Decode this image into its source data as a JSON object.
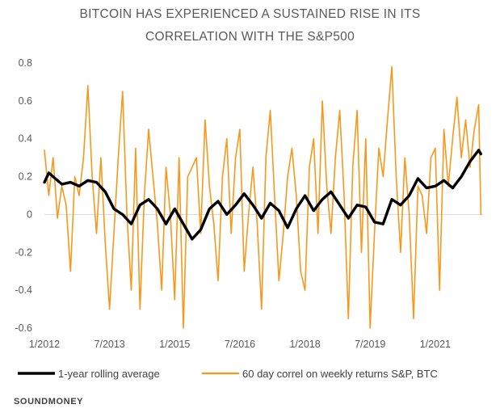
{
  "chart_data": {
    "type": "line",
    "title": [
      "BITCOIN HAS EXPERIENCED  A SUSTAINED RISE IN ITS",
      "CORRELATION WITH THE S&P500"
    ],
    "xlabel": "",
    "ylabel": "",
    "ylim": [
      -0.6,
      0.8
    ],
    "yticks": [
      -0.6,
      -0.4,
      -0.2,
      0,
      0.2,
      0.4,
      0.6,
      0.8
    ],
    "ytick_labels": [
      "-0.6",
      "-0.4",
      "-0.2",
      "0",
      "0.2",
      "0.4",
      "0.6",
      "0.8"
    ],
    "xlim": [
      2012.0,
      2022.1
    ],
    "xticks": [
      2012.0,
      2013.5,
      2015.0,
      2016.5,
      2018.0,
      2019.5,
      2021.0
    ],
    "xtick_labels": [
      "1/2012",
      "7/2013",
      "1/2015",
      "7/2016",
      "1/2018",
      "7/2019",
      "1/2021"
    ],
    "grid": false,
    "legend_position": "bottom",
    "series": [
      {
        "name": "60 day correl on weekly returns S&P, BTC",
        "color": "#F7981D",
        "x": [
          2012.0,
          2012.1,
          2012.2,
          2012.3,
          2012.4,
          2012.5,
          2012.6,
          2012.7,
          2012.8,
          2012.9,
          2013.0,
          2013.1,
          2013.2,
          2013.3,
          2013.4,
          2013.5,
          2013.6,
          2013.7,
          2013.8,
          2013.9,
          2014.0,
          2014.1,
          2014.2,
          2014.3,
          2014.4,
          2014.5,
          2014.6,
          2014.7,
          2014.8,
          2014.9,
          2015.0,
          2015.1,
          2015.2,
          2015.3,
          2015.4,
          2015.5,
          2015.6,
          2015.7,
          2015.8,
          2015.9,
          2016.0,
          2016.1,
          2016.2,
          2016.3,
          2016.4,
          2016.5,
          2016.6,
          2016.7,
          2016.8,
          2016.9,
          2017.0,
          2017.1,
          2017.2,
          2017.3,
          2017.4,
          2017.5,
          2017.6,
          2017.7,
          2017.8,
          2017.9,
          2018.0,
          2018.1,
          2018.2,
          2018.3,
          2018.4,
          2018.5,
          2018.6,
          2018.7,
          2018.8,
          2018.9,
          2019.0,
          2019.1,
          2019.2,
          2019.3,
          2019.4,
          2019.5,
          2019.6,
          2019.7,
          2019.8,
          2019.9,
          2020.0,
          2020.1,
          2020.2,
          2020.3,
          2020.4,
          2020.5,
          2020.6,
          2020.7,
          2020.8,
          2020.9,
          2021.0,
          2021.1,
          2021.2,
          2021.3,
          2021.4,
          2021.5,
          2021.6,
          2021.7,
          2021.8,
          2021.9,
          2022.0,
          2022.05
        ],
        "values": [
          0.34,
          0.1,
          0.3,
          -0.02,
          0.15,
          0.05,
          -0.3,
          0.2,
          0.1,
          0.3,
          0.68,
          0.2,
          -0.1,
          0.3,
          -0.15,
          -0.5,
          -0.1,
          0.3,
          0.65,
          0.0,
          -0.4,
          0.35,
          -0.5,
          0.1,
          0.45,
          0.2,
          -0.05,
          -0.4,
          0.25,
          0.0,
          -0.45,
          0.3,
          -0.6,
          0.2,
          0.25,
          0.3,
          -0.1,
          0.5,
          0.15,
          -0.05,
          -0.35,
          0.2,
          0.4,
          -0.1,
          0.3,
          0.45,
          -0.3,
          0.0,
          0.25,
          -0.05,
          -0.5,
          0.3,
          0.55,
          0.1,
          -0.35,
          -0.1,
          0.2,
          0.35,
          0.1,
          -0.3,
          -0.4,
          0.25,
          0.4,
          -0.1,
          0.6,
          0.15,
          -0.1,
          0.3,
          0.55,
          0.1,
          -0.55,
          0.25,
          0.55,
          -0.2,
          0.4,
          -0.6,
          -0.1,
          0.35,
          0.2,
          0.5,
          0.78,
          0.2,
          -0.2,
          0.3,
          0.0,
          -0.55,
          0.15,
          0.1,
          -0.1,
          0.3,
          0.35,
          -0.4,
          0.45,
          0.15,
          0.4,
          0.62,
          0.3,
          0.5,
          0.25,
          0.45,
          0.58,
          0.0
        ]
      },
      {
        "name": "1-year rolling average",
        "color": "#000000",
        "x": [
          2012.0,
          2012.1,
          2012.2,
          2012.4,
          2012.6,
          2012.8,
          2013.0,
          2013.2,
          2013.4,
          2013.6,
          2013.8,
          2014.0,
          2014.2,
          2014.4,
          2014.6,
          2014.8,
          2015.0,
          2015.2,
          2015.4,
          2015.6,
          2015.8,
          2016.0,
          2016.2,
          2016.4,
          2016.6,
          2016.8,
          2017.0,
          2017.2,
          2017.4,
          2017.6,
          2017.8,
          2018.0,
          2018.2,
          2018.4,
          2018.6,
          2018.8,
          2019.0,
          2019.2,
          2019.4,
          2019.6,
          2019.8,
          2020.0,
          2020.2,
          2020.4,
          2020.6,
          2020.8,
          2021.0,
          2021.2,
          2021.4,
          2021.6,
          2021.8,
          2022.0,
          2022.05
        ],
        "values": [
          0.17,
          0.22,
          0.2,
          0.16,
          0.17,
          0.15,
          0.18,
          0.17,
          0.12,
          0.03,
          0.0,
          -0.05,
          0.05,
          0.08,
          0.03,
          -0.05,
          0.03,
          -0.05,
          -0.13,
          -0.08,
          0.03,
          0.07,
          0.0,
          0.05,
          0.11,
          0.05,
          -0.02,
          0.06,
          0.02,
          -0.07,
          0.03,
          0.1,
          0.02,
          0.08,
          0.12,
          0.05,
          -0.02,
          0.05,
          0.04,
          -0.04,
          -0.05,
          0.08,
          0.05,
          0.1,
          0.19,
          0.14,
          0.15,
          0.18,
          0.14,
          0.2,
          0.28,
          0.34,
          0.32
        ]
      }
    ],
    "legend": [
      {
        "label": "1-year rolling average",
        "color": "#000000"
      },
      {
        "label": "60 day correl on weekly returns S&P, BTC",
        "color": "#F7981D"
      }
    ]
  },
  "source_label": "SOUNDMONEY"
}
